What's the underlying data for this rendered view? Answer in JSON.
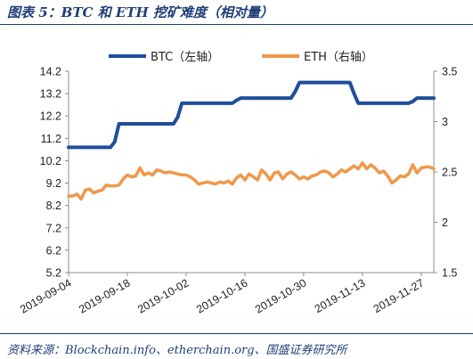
{
  "header": {
    "title": "图表 5：BTC 和 ETH 挖矿难度（相对量）"
  },
  "footer": {
    "source": "资料来源：Blockchain.info、etherchain.org、国盛证券研究所"
  },
  "colors": {
    "btc": "#1f4e9a",
    "eth": "#f0984a",
    "axis": "#8c8c8c",
    "rule": "#1f3f78"
  },
  "chart_data": {
    "type": "line",
    "title": "",
    "xlabel": "",
    "ylabel": "",
    "x_start": "2019-09-04",
    "x_end": "2019-11-30",
    "x_tick_labels": [
      "2019-09-04",
      "2019-09-18",
      "2019-10-02",
      "2019-10-16",
      "2019-10-30",
      "2019-11-13",
      "2019-11-27"
    ],
    "ylim_left": [
      5.2,
      14.2
    ],
    "yticks_left": [
      "14.2",
      "13.2",
      "12.2",
      "11.2",
      "10.2",
      "9.2",
      "8.2",
      "7.2",
      "6.2",
      "5.2"
    ],
    "ylim_right": [
      1.5,
      3.5
    ],
    "yticks_right": [
      "3.5",
      "3",
      "2.5",
      "2",
      "1.5"
    ],
    "legend_position": "top-center",
    "series": [
      {
        "name": "BTC（左轴）",
        "axis": "left",
        "x": [
          "2019-09-04",
          "2019-09-14",
          "2019-09-15",
          "2019-09-16",
          "2019-09-29",
          "2019-09-30",
          "2019-10-01",
          "2019-10-13",
          "2019-10-14",
          "2019-10-15",
          "2019-10-27",
          "2019-10-28",
          "2019-10-29",
          "2019-11-10",
          "2019-11-11",
          "2019-11-12",
          "2019-11-24",
          "2019-11-25",
          "2019-11-26",
          "2019-11-30"
        ],
        "values": [
          10.8,
          10.8,
          11.05,
          11.85,
          11.85,
          12.15,
          12.77,
          12.77,
          12.9,
          13.0,
          13.0,
          13.3,
          13.7,
          13.7,
          13.2,
          12.77,
          12.77,
          12.85,
          13.0,
          13.0
        ]
      },
      {
        "name": "ETH（右轴）",
        "axis": "right",
        "x": [
          "2019-09-04",
          "2019-09-05",
          "2019-09-06",
          "2019-09-07",
          "2019-09-08",
          "2019-09-09",
          "2019-09-10",
          "2019-09-11",
          "2019-09-12",
          "2019-09-13",
          "2019-09-14",
          "2019-09-15",
          "2019-09-16",
          "2019-09-17",
          "2019-09-18",
          "2019-09-19",
          "2019-09-20",
          "2019-09-21",
          "2019-09-22",
          "2019-09-23",
          "2019-09-24",
          "2019-09-25",
          "2019-09-26",
          "2019-09-27",
          "2019-09-28",
          "2019-09-29",
          "2019-09-30",
          "2019-10-01",
          "2019-10-02",
          "2019-10-03",
          "2019-10-04",
          "2019-10-05",
          "2019-10-06",
          "2019-10-07",
          "2019-10-08",
          "2019-10-09",
          "2019-10-10",
          "2019-10-11",
          "2019-10-12",
          "2019-10-13",
          "2019-10-14",
          "2019-10-15",
          "2019-10-16",
          "2019-10-17",
          "2019-10-18",
          "2019-10-19",
          "2019-10-20",
          "2019-10-21",
          "2019-10-22",
          "2019-10-23",
          "2019-10-24",
          "2019-10-25",
          "2019-10-26",
          "2019-10-27",
          "2019-10-28",
          "2019-10-29",
          "2019-10-30",
          "2019-10-31",
          "2019-11-01",
          "2019-11-02",
          "2019-11-03",
          "2019-11-04",
          "2019-11-05",
          "2019-11-06",
          "2019-11-07",
          "2019-11-08",
          "2019-11-09",
          "2019-11-10",
          "2019-11-11",
          "2019-11-12",
          "2019-11-13",
          "2019-11-14",
          "2019-11-15",
          "2019-11-16",
          "2019-11-17",
          "2019-11-18",
          "2019-11-19",
          "2019-11-20",
          "2019-11-21",
          "2019-11-22",
          "2019-11-23",
          "2019-11-24",
          "2019-11-25",
          "2019-11-26",
          "2019-11-27",
          "2019-11-28",
          "2019-11-29",
          "2019-11-30"
        ],
        "values": [
          2.26,
          2.26,
          2.28,
          2.23,
          2.32,
          2.33,
          2.29,
          2.31,
          2.32,
          2.37,
          2.36,
          2.36,
          2.37,
          2.43,
          2.47,
          2.45,
          2.46,
          2.54,
          2.47,
          2.49,
          2.47,
          2.52,
          2.51,
          2.49,
          2.5,
          2.49,
          2.48,
          2.47,
          2.47,
          2.45,
          2.42,
          2.38,
          2.39,
          2.4,
          2.39,
          2.38,
          2.4,
          2.39,
          2.41,
          2.38,
          2.44,
          2.47,
          2.42,
          2.48,
          2.45,
          2.42,
          2.52,
          2.48,
          2.42,
          2.49,
          2.5,
          2.43,
          2.48,
          2.5,
          2.47,
          2.43,
          2.45,
          2.43,
          2.46,
          2.47,
          2.5,
          2.51,
          2.49,
          2.45,
          2.48,
          2.52,
          2.5,
          2.53,
          2.56,
          2.53,
          2.59,
          2.53,
          2.57,
          2.54,
          2.49,
          2.51,
          2.46,
          2.39,
          2.42,
          2.46,
          2.45,
          2.48,
          2.57,
          2.49,
          2.54,
          2.55,
          2.55,
          2.53
        ]
      }
    ]
  }
}
